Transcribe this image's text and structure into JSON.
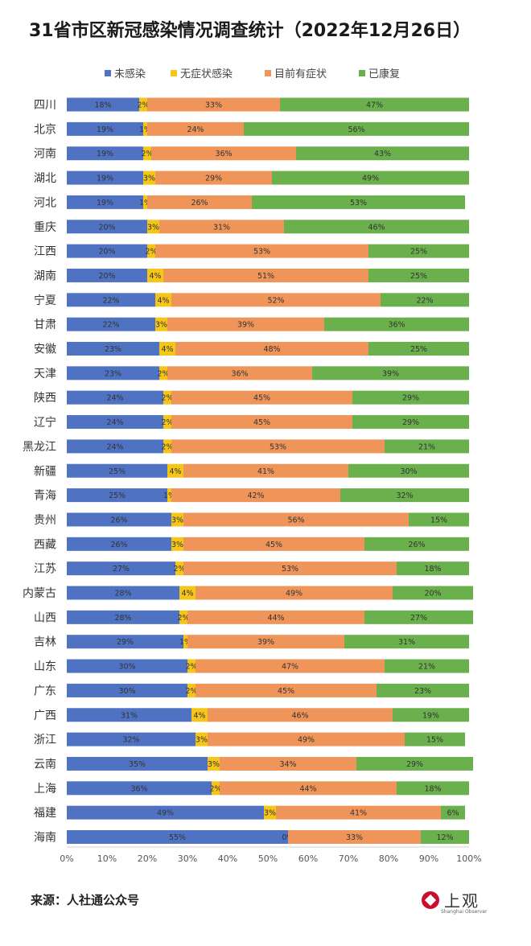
{
  "title": "31省市区新冠感染情况调查统计（2022年12月26日）",
  "source": "来源：人社通公众号",
  "logo": {
    "text": "上观",
    "sub": "Shanghai Observer"
  },
  "chart_data": {
    "type": "bar",
    "orientation": "horizontal",
    "stacked": true,
    "normalized": true,
    "categories": [
      "四川",
      "北京",
      "河南",
      "湖北",
      "河北",
      "重庆",
      "江西",
      "湖南",
      "宁夏",
      "甘肃",
      "安徽",
      "天津",
      "陕西",
      "辽宁",
      "黑龙江",
      "新疆",
      "青海",
      "贵州",
      "西藏",
      "江苏",
      "内蒙古",
      "山西",
      "吉林",
      "山东",
      "广东",
      "广西",
      "浙江",
      "云南",
      "上海",
      "福建",
      "海南"
    ],
    "series": [
      {
        "name": "未感染",
        "color": "#4f73c2",
        "values": [
          18,
          19,
          19,
          19,
          19,
          20,
          20,
          20,
          22,
          22,
          23,
          23,
          24,
          24,
          24,
          25,
          25,
          26,
          26,
          27,
          28,
          28,
          29,
          30,
          30,
          31,
          32,
          35,
          36,
          49,
          55
        ]
      },
      {
        "name": "无症状感染",
        "color": "#f5c518",
        "values": [
          2,
          1,
          2,
          3,
          1,
          3,
          2,
          4,
          4,
          3,
          4,
          2,
          2,
          2,
          2,
          4,
          1,
          3,
          3,
          2,
          4,
          2,
          1,
          2,
          2,
          4,
          3,
          3,
          2,
          3,
          0
        ]
      },
      {
        "name": "目前有症状",
        "color": "#f0955a",
        "values": [
          33,
          24,
          36,
          29,
          26,
          31,
          53,
          51,
          52,
          39,
          48,
          36,
          45,
          45,
          53,
          41,
          42,
          56,
          45,
          53,
          49,
          44,
          39,
          47,
          45,
          46,
          49,
          34,
          44,
          41,
          33
        ]
      },
      {
        "name": "已康复",
        "color": "#6ab04c",
        "values": [
          47,
          56,
          43,
          49,
          53,
          46,
          25,
          25,
          22,
          36,
          25,
          39,
          29,
          29,
          21,
          30,
          32,
          15,
          26,
          18,
          20,
          27,
          31,
          21,
          23,
          19,
          15,
          29,
          18,
          6,
          12
        ]
      }
    ],
    "xlim": [
      0,
      100
    ],
    "xticks": [
      "0%",
      "10%",
      "20%",
      "30%",
      "40%",
      "50%",
      "60%",
      "70%",
      "80%",
      "90%",
      "100%"
    ],
    "legend_position": "top",
    "grid": false
  }
}
